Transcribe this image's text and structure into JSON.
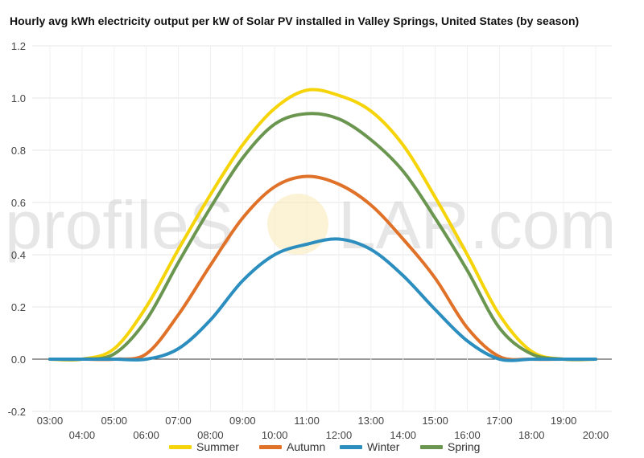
{
  "chart_data": {
    "type": "line",
    "title": "Hourly avg kWh electricity output per kW of Solar PV installed in Valley Springs, United States (by season)",
    "xlabel": "",
    "ylabel": "",
    "x": [
      "03:00",
      "04:00",
      "05:00",
      "06:00",
      "07:00",
      "08:00",
      "09:00",
      "10:00",
      "11:00",
      "12:00",
      "13:00",
      "14:00",
      "15:00",
      "16:00",
      "17:00",
      "18:00",
      "19:00",
      "20:00"
    ],
    "ylim": [
      -0.2,
      1.2
    ],
    "yticks": [
      "-0.2",
      "0.0",
      "0.2",
      "0.4",
      "0.6",
      "0.8",
      "1.0",
      "1.2"
    ],
    "grid": true,
    "legend_position": "bottom",
    "series": [
      {
        "name": "Summer",
        "color": "#f6d40a",
        "values": [
          0.0,
          0.0,
          0.04,
          0.2,
          0.42,
          0.63,
          0.82,
          0.96,
          1.03,
          1.01,
          0.95,
          0.82,
          0.62,
          0.4,
          0.17,
          0.03,
          0.0,
          0.0
        ]
      },
      {
        "name": "Autumn",
        "color": "#e07128",
        "values": [
          0.0,
          0.0,
          0.0,
          0.02,
          0.17,
          0.36,
          0.54,
          0.66,
          0.7,
          0.67,
          0.59,
          0.46,
          0.31,
          0.12,
          0.01,
          0.0,
          0.0,
          0.0
        ]
      },
      {
        "name": "Winter",
        "color": "#2b8ebf",
        "values": [
          0.0,
          0.0,
          0.0,
          0.0,
          0.04,
          0.15,
          0.3,
          0.4,
          0.44,
          0.46,
          0.42,
          0.32,
          0.19,
          0.07,
          0.0,
          0.0,
          0.0,
          0.0
        ]
      },
      {
        "name": "Spring",
        "color": "#6b9650",
        "values": [
          0.0,
          0.0,
          0.02,
          0.15,
          0.37,
          0.58,
          0.77,
          0.9,
          0.94,
          0.92,
          0.84,
          0.72,
          0.54,
          0.34,
          0.12,
          0.02,
          0.0,
          0.0
        ]
      }
    ]
  },
  "watermark": {
    "text_left": "profileS",
    "text_right": "LAR.com"
  }
}
